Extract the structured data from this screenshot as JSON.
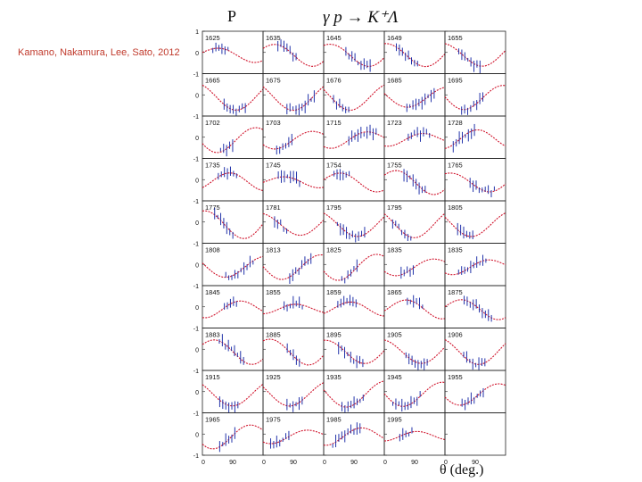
{
  "header": {
    "citation": "Kamano,  Nakamura, Lee, Sato, 2012",
    "observable": "P",
    "reaction": "γ p → K⁺Λ",
    "x_axis_title": "θ (deg.)"
  },
  "chart_data": {
    "type": "line",
    "title": "γ p → K⁺Λ",
    "observable": "P",
    "xlabel": "θ (deg.)",
    "x_ticks": [
      "0",
      "90"
    ],
    "y_ticks": [
      "1",
      "0",
      "-1"
    ],
    "xlim": [
      0,
      180
    ],
    "ylim": [
      -1,
      1
    ],
    "grid": false,
    "layout": "10 rows × 5 columns of panels",
    "series": [
      {
        "name": "model",
        "color": "#d0142c",
        "style": "dotted"
      }
    ],
    "data_color": "#2233aa",
    "energy_labels": [
      [
        "1625",
        "1635",
        "1645",
        "1649",
        "1655"
      ],
      [
        "1665",
        "1675",
        "1676",
        "1685",
        "1695"
      ],
      [
        "1702",
        "1703",
        "1715",
        "1723",
        "1728"
      ],
      [
        "1735",
        "1745",
        "1754",
        "1755",
        "1765"
      ],
      [
        "1775",
        "1781",
        "1795",
        "1795",
        "1805"
      ],
      [
        "1808",
        "1813",
        "1825",
        "1835",
        "1835"
      ],
      [
        "1845",
        "1855",
        "1859",
        "1865",
        "1875"
      ],
      [
        "1883",
        "1885",
        "1895",
        "1905",
        "1906"
      ],
      [
        "1915",
        "1925",
        "1935",
        "1945",
        "1955"
      ],
      [
        "1965",
        "1975",
        "1985",
        "1995",
        ""
      ]
    ]
  }
}
